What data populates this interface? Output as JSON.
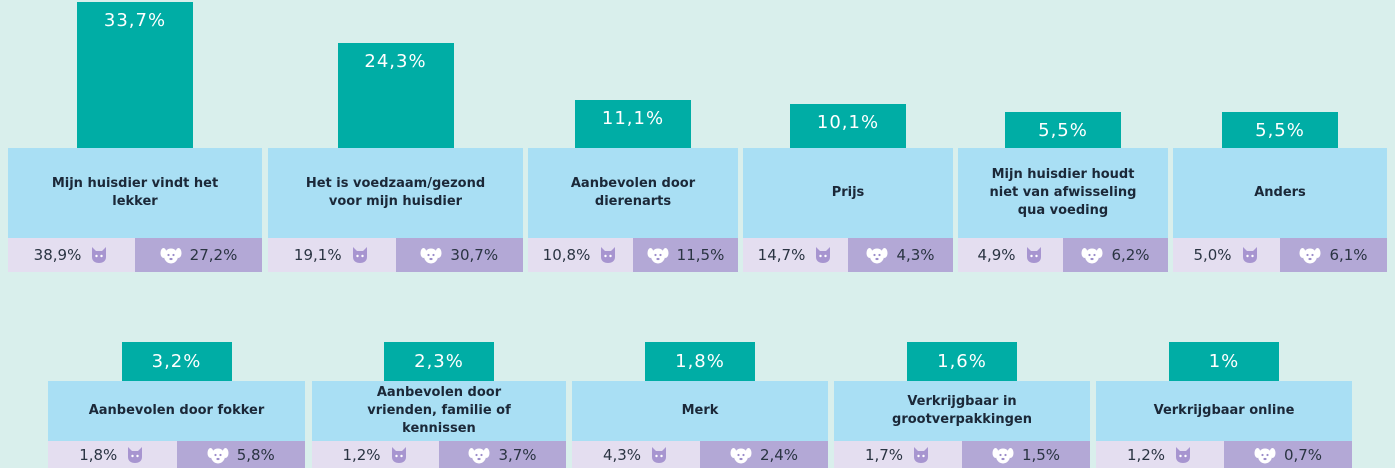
{
  "chart_data": {
    "type": "bar",
    "categories": [
      "Mijn huisdier vindt het lekker",
      "Het is voedzaam/gezond voor mijn huisdier",
      "Aanbevolen door dierenarts",
      "Prijs",
      "Mijn huisdier houdt niet van afwisseling qua voeding",
      "Anders",
      "Aanbevolen door fokker",
      "Aanbevolen door vrienden, familie of kennissen",
      "Merk",
      "Verkrijgbaar in grootverpakkingen",
      "Verkrijgbaar online"
    ],
    "values": [
      33.7,
      24.3,
      11.1,
      10.1,
      5.5,
      5.5,
      3.2,
      2.3,
      1.8,
      1.6,
      1
    ],
    "value_labels": [
      "33,7%",
      "24,3%",
      "11,1%",
      "10,1%",
      "5,5%",
      "5,5%",
      "3,2%",
      "2,3%",
      "1,8%",
      "1,6%",
      "1%"
    ],
    "color": "#00ada5",
    "series": [
      {
        "color": "#e4def0",
        "values": [
          38.9,
          19.1,
          10.8,
          14.7,
          4.9,
          5.0,
          1.8,
          1.2,
          4.3,
          1.7,
          1.2
        ],
        "value_labels": [
          "38,9%",
          "19,1%",
          "10,8%",
          "14,7%",
          "4,9%",
          "5,0%",
          "1,8%",
          "1,2%",
          "4,3%",
          "1,7%",
          "1,2%"
        ]
      },
      {
        "color": "#b3a8d6",
        "values": [
          27.2,
          30.7,
          11.5,
          4.3,
          6.2,
          6.1,
          5.8,
          3.7,
          2.4,
          1.5,
          0.7
        ],
        "value_labels": [
          "27,2%",
          "30,7%",
          "11,5%",
          "4,3%",
          "6,2%",
          "6,1%",
          "5,8%",
          "3,7%",
          "2,4%",
          "1,5%",
          "0,7%"
        ]
      }
    ]
  }
}
